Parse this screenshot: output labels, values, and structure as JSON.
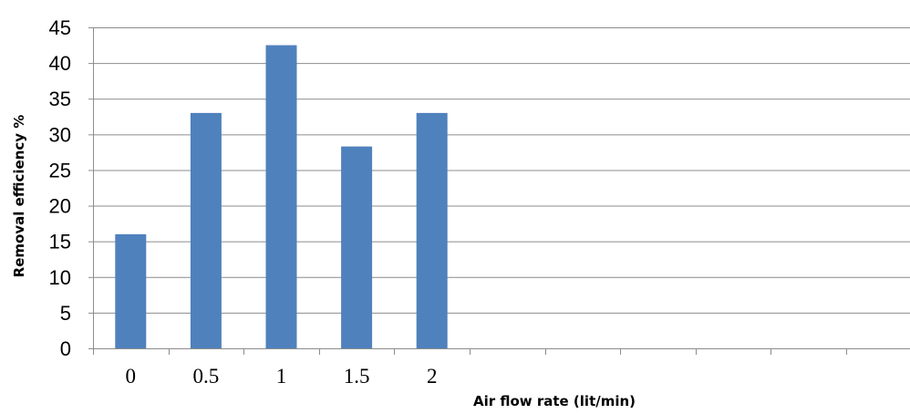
{
  "chart_data": {
    "type": "bar",
    "categories": [
      "0",
      "0.5",
      "1",
      "1.5",
      "2",
      "",
      "",
      "",
      "",
      "",
      ""
    ],
    "values": [
      16,
      33,
      42.5,
      28.3,
      33,
      null,
      null,
      null,
      null,
      null,
      null
    ],
    "xlabel": "Air flow rate (lit/min)",
    "ylabel": "Removal efficiency %",
    "ylim": [
      0,
      45
    ],
    "yticks": [
      0,
      5,
      10,
      15,
      20,
      25,
      30,
      35,
      40,
      45
    ],
    "grid": true,
    "legend": "none",
    "colors": {
      "bar": "#4f81bd",
      "grid": "#8c8c8c",
      "axis": "#8c8c8c"
    }
  }
}
